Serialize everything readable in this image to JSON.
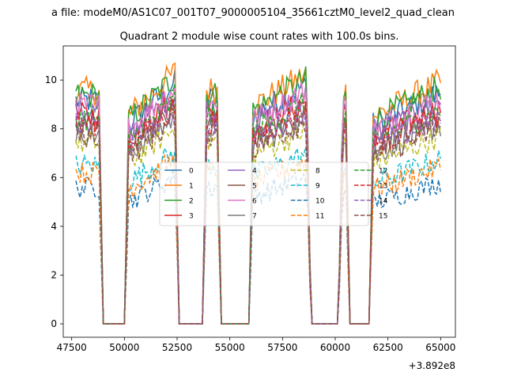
{
  "chart_data": {
    "type": "line",
    "suptitle": "a file: modeM0/AS1C07_001T07_9000005104_35661cztM0_level2_quad_clean",
    "title": "Quadrant 2 module wise count rates with 100.0s bins.",
    "xlabel": "",
    "ylabel": "",
    "x_offset_label": "+3.892e8",
    "xlim": [
      47100,
      65700
    ],
    "ylim": [
      -0.55,
      11.4
    ],
    "x_ticks": [
      47500,
      50000,
      52500,
      55000,
      57500,
      60000,
      62500,
      65000
    ],
    "x_tick_labels": [
      "47500",
      "50000",
      "52500",
      "55000",
      "57500",
      "60000",
      "62500",
      "65000"
    ],
    "y_ticks": [
      0,
      2,
      4,
      6,
      8,
      10
    ],
    "y_tick_labels": [
      "0",
      "2",
      "4",
      "6",
      "8",
      "10"
    ],
    "bin_width_s": 100,
    "active_intervals": [
      [
        47700,
        48750
      ],
      [
        50100,
        52400
      ],
      [
        53900,
        54350
      ],
      [
        56000,
        58600
      ],
      [
        60300,
        60500
      ],
      [
        61700,
        65000
      ]
    ],
    "gaps": [
      [
        49000,
        50000
      ],
      [
        52600,
        53700
      ],
      [
        54600,
        55900
      ],
      [
        58850,
        60150
      ],
      [
        60700,
        61600
      ]
    ],
    "ramp_s": 200,
    "series": [
      {
        "name": "0",
        "level": 9.0,
        "color": "#1f77b4",
        "dash": "solid"
      },
      {
        "name": "1",
        "level": 9.4,
        "color": "#ff7f0e",
        "dash": "solid"
      },
      {
        "name": "2",
        "level": 9.2,
        "color": "#2ca02c",
        "dash": "solid"
      },
      {
        "name": "3",
        "level": 8.4,
        "color": "#d62728",
        "dash": "solid"
      },
      {
        "name": "4",
        "level": 8.6,
        "color": "#9467bd",
        "dash": "solid"
      },
      {
        "name": "5",
        "level": 7.9,
        "color": "#8c564b",
        "dash": "solid"
      },
      {
        "name": "6",
        "level": 8.8,
        "color": "#e377c2",
        "dash": "solid"
      },
      {
        "name": "7",
        "level": 7.7,
        "color": "#7f7f7f",
        "dash": "solid"
      },
      {
        "name": "8",
        "level": 7.3,
        "color": "#bcbd22",
        "dash": "dashed"
      },
      {
        "name": "9",
        "level": 6.4,
        "color": "#17becf",
        "dash": "dashed"
      },
      {
        "name": "10",
        "level": 5.5,
        "color": "#1f77b4",
        "dash": "dashed"
      },
      {
        "name": "11",
        "level": 6.1,
        "color": "#ff7f0e",
        "dash": "dashed"
      },
      {
        "name": "12",
        "level": 8.3,
        "color": "#2ca02c",
        "dash": "dashed"
      },
      {
        "name": "13",
        "level": 8.1,
        "color": "#d62728",
        "dash": "dashed"
      },
      {
        "name": "14",
        "level": 8.0,
        "color": "#9467bd",
        "dash": "dashed"
      },
      {
        "name": "15",
        "level": 7.6,
        "color": "#8c564b",
        "dash": "dashed"
      }
    ]
  }
}
